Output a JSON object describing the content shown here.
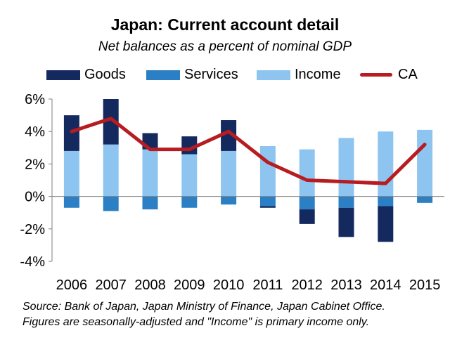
{
  "title": "Japan: Current account detail",
  "subtitle": "Net balances as a percent of nominal GDP",
  "legend": [
    {
      "label": "Goods",
      "color": "#14295e",
      "kind": "bar"
    },
    {
      "label": "Services",
      "color": "#2b7fc4",
      "kind": "bar"
    },
    {
      "label": "Income",
      "color": "#8ec5f0",
      "kind": "bar"
    },
    {
      "label": "CA",
      "color": "#b71c20",
      "kind": "line"
    }
  ],
  "footnote": [
    "Source: Bank of Japan, Japan Ministry of Finance, Japan Cabinet Office.",
    "Figures are seasonally-adjusted and \"Income\" is primary income only."
  ],
  "chart_data": {
    "type": "bar",
    "stacked": true,
    "title": "Japan: Current account detail",
    "subtitle": "Net balances as a percent of nominal GDP",
    "categories": [
      "2006",
      "2007",
      "2008",
      "2009",
      "2010",
      "2011",
      "2012",
      "2013",
      "2014",
      "2015"
    ],
    "series": [
      {
        "name": "Goods",
        "color": "#14295e",
        "values": [
          2.2,
          2.8,
          1.0,
          1.1,
          1.9,
          -0.1,
          -0.9,
          -1.8,
          -2.2,
          0.0
        ]
      },
      {
        "name": "Services",
        "color": "#2b7fc4",
        "values": [
          -0.7,
          -0.9,
          -0.8,
          -0.7,
          -0.5,
          -0.6,
          -0.8,
          -0.7,
          -0.6,
          -0.4
        ]
      },
      {
        "name": "Income",
        "color": "#8ec5f0",
        "values": [
          2.8,
          3.2,
          2.9,
          2.6,
          2.8,
          3.1,
          2.9,
          3.6,
          4.0,
          4.1
        ]
      }
    ],
    "line": {
      "name": "CA",
      "color": "#b71c20",
      "values": [
        4.0,
        4.8,
        2.9,
        2.9,
        4.0,
        2.1,
        1.0,
        0.9,
        0.8,
        3.2
      ]
    },
    "ylim": [
      -4,
      6
    ],
    "yticks": [
      -4,
      -2,
      0,
      2,
      4,
      6
    ],
    "ytick_labels": [
      "-4%",
      "-2%",
      "0%",
      "2%",
      "4%",
      "6%"
    ],
    "xlabel": "",
    "ylabel": ""
  }
}
